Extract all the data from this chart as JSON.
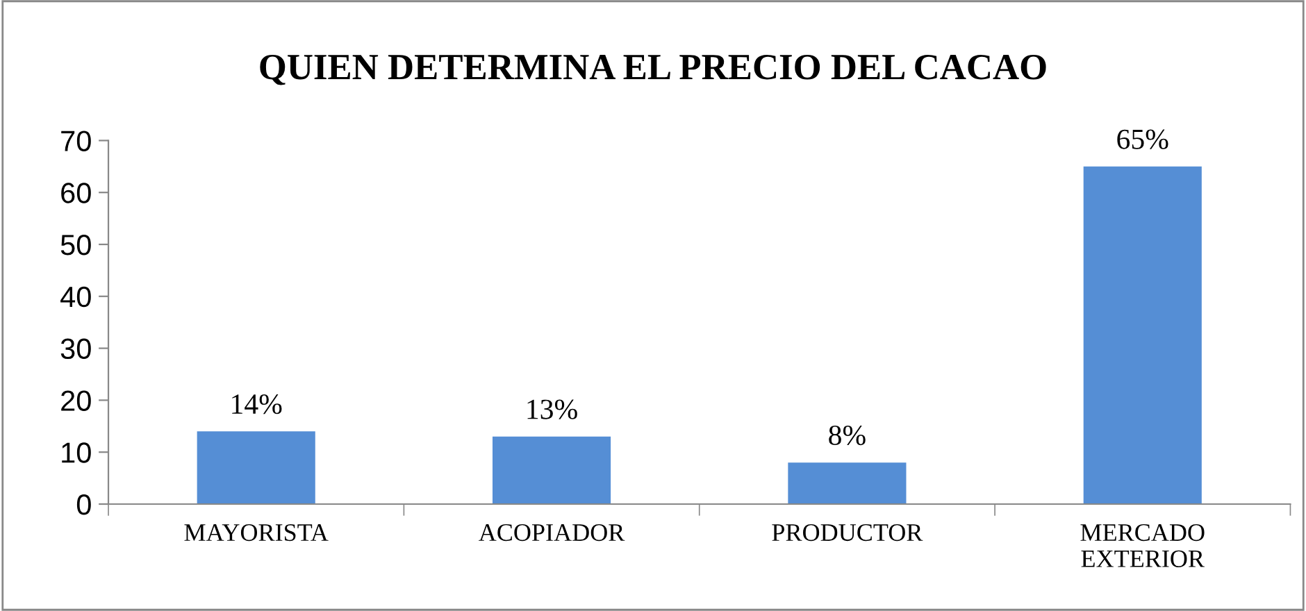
{
  "chart_data": {
    "type": "bar",
    "title": "QUIEN DETERMINA EL PRECIO DEL CACAO",
    "categories": [
      "MAYORISTA",
      "ACOPIADOR",
      "PRODUCTOR",
      "MERCADO\nEXTERIOR"
    ],
    "values": [
      14,
      13,
      8,
      65
    ],
    "value_labels": [
      "14%",
      "13%",
      "8%",
      "65%"
    ],
    "color": "#558ed5",
    "ylim": [
      0,
      70
    ],
    "yticks": [
      0,
      10,
      20,
      30,
      40,
      50,
      60,
      70
    ],
    "grid": false,
    "legend": false
  }
}
